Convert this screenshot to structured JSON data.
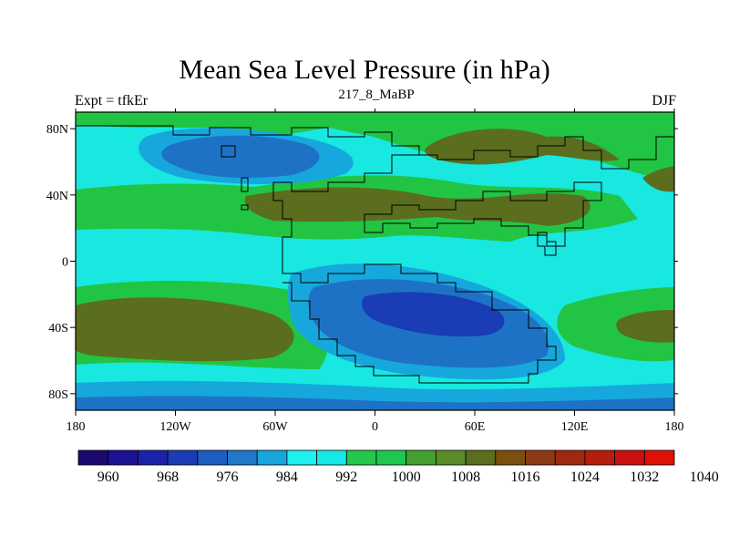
{
  "title": "Mean Sea Level Pressure (in hPa)",
  "subtitle_left": "Expt = tfkEr",
  "subtitle_center": "217_8_MaBP",
  "subtitle_right": "DJF",
  "x_ticks": [
    "180",
    "120W",
    "60W",
    "0",
    "60E",
    "120E",
    "180"
  ],
  "y_ticks": [
    "80N",
    "40N",
    "0",
    "40S",
    "80S"
  ],
  "colorbar": {
    "labels": [
      "960",
      "968",
      "976",
      "984",
      "992",
      "1000",
      "1008",
      "1016",
      "1024",
      "1032",
      "1040"
    ],
    "colors": [
      "#1a0a6e",
      "#1c1296",
      "#1a22a8",
      "#1a3cb4",
      "#1e5cc0",
      "#1f78c8",
      "#16a6dc",
      "#1ef0f0",
      "#16e8e8",
      "#22c84c",
      "#1ec850",
      "#43a02e",
      "#5a8c2a",
      "#5a6e1e",
      "#7a5010",
      "#8c3a14",
      "#a0280e",
      "#b41e0a",
      "#c81010",
      "#e01008"
    ]
  },
  "map_colors": {
    "land_outline": "#000000",
    "cyan": "#18e8e0",
    "green": "#22c444",
    "olive": "#5a6e1e",
    "blue_light": "#16a8dc",
    "blue": "#1e72c6",
    "blue_dark": "#1a3cb4"
  }
}
